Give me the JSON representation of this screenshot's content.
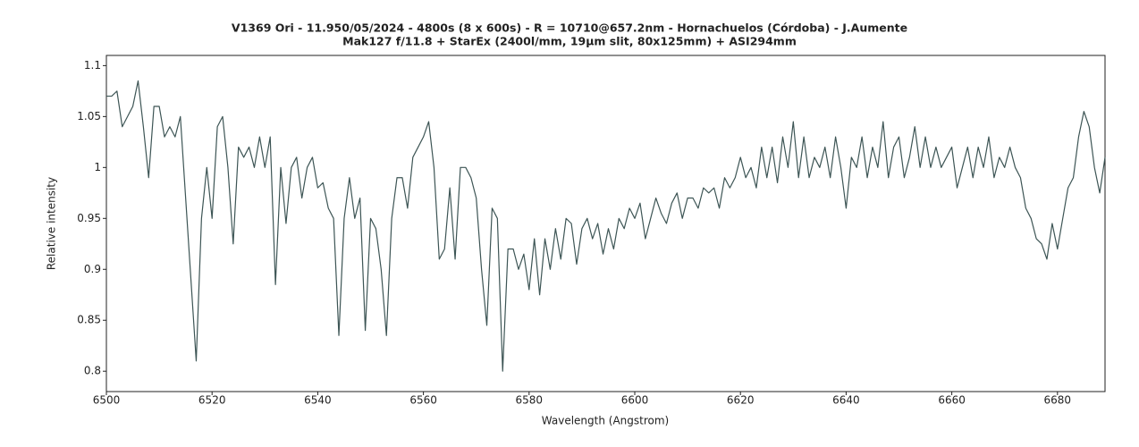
{
  "chart_data": {
    "type": "line",
    "title": "V1369 Ori - 11.950/05/2024 - 4800s (8 x 600s) - R = 10710@657.2nm - Hornachuelos (Córdoba) - J.Aumente",
    "subtitle": "Mak127 f/11.8 + StarEx (2400l/mm, 19µm slit, 80x125mm) + ASI294mm",
    "x_label": "Wavelength (Angstrom)",
    "y_label": "Relative intensity",
    "xlim": [
      6500,
      6689
    ],
    "ylim": [
      0.78,
      1.11
    ],
    "xticks": [
      6500,
      6520,
      6540,
      6560,
      6580,
      6600,
      6620,
      6640,
      6660,
      6680
    ],
    "yticks": [
      0.8,
      0.85,
      0.9,
      0.95,
      1,
      1.05,
      1.1
    ],
    "x": [
      6500,
      6501,
      6502,
      6503,
      6504,
      6505,
      6506,
      6507,
      6508,
      6509,
      6510,
      6511,
      6512,
      6513,
      6514,
      6515,
      6516,
      6517,
      6518,
      6519,
      6520,
      6521,
      6522,
      6523,
      6524,
      6525,
      6526,
      6527,
      6528,
      6529,
      6530,
      6531,
      6532,
      6533,
      6534,
      6535,
      6536,
      6537,
      6538,
      6539,
      6540,
      6541,
      6542,
      6543,
      6544,
      6545,
      6546,
      6547,
      6548,
      6549,
      6550,
      6551,
      6552,
      6553,
      6554,
      6555,
      6556,
      6557,
      6558,
      6559,
      6560,
      6561,
      6562,
      6563,
      6564,
      6565,
      6566,
      6567,
      6568,
      6569,
      6570,
      6571,
      6572,
      6573,
      6574,
      6575,
      6576,
      6577,
      6578,
      6579,
      6580,
      6581,
      6582,
      6583,
      6584,
      6585,
      6586,
      6587,
      6588,
      6589,
      6590,
      6591,
      6592,
      6593,
      6594,
      6595,
      6596,
      6597,
      6598,
      6599,
      6600,
      6601,
      6602,
      6603,
      6604,
      6605,
      6606,
      6607,
      6608,
      6609,
      6610,
      6611,
      6612,
      6613,
      6614,
      6615,
      6616,
      6617,
      6618,
      6619,
      6620,
      6621,
      6622,
      6623,
      6624,
      6625,
      6626,
      6627,
      6628,
      6629,
      6630,
      6631,
      6632,
      6633,
      6634,
      6635,
      6636,
      6637,
      6638,
      6639,
      6640,
      6641,
      6642,
      6643,
      6644,
      6645,
      6646,
      6647,
      6648,
      6649,
      6650,
      6651,
      6652,
      6653,
      6654,
      6655,
      6656,
      6657,
      6658,
      6659,
      6660,
      6661,
      6662,
      6663,
      6664,
      6665,
      6666,
      6667,
      6668,
      6669,
      6670,
      6671,
      6672,
      6673,
      6674,
      6675,
      6676,
      6677,
      6678,
      6679,
      6680,
      6681,
      6682,
      6683,
      6684,
      6685,
      6686,
      6687,
      6688,
      6689
    ],
    "series": [
      {
        "color": "#3d5555",
        "values": [
          1.07,
          1.07,
          1.075,
          1.04,
          1.05,
          1.06,
          1.085,
          1.04,
          0.99,
          1.06,
          1.06,
          1.03,
          1.04,
          1.03,
          1.05,
          0.97,
          0.89,
          0.81,
          0.95,
          1.0,
          0.95,
          1.04,
          1.05,
          1.0,
          0.925,
          1.02,
          1.01,
          1.02,
          1.0,
          1.03,
          1.0,
          1.03,
          0.885,
          1.0,
          0.945,
          1.0,
          1.01,
          0.97,
          1.0,
          1.01,
          0.98,
          0.985,
          0.96,
          0.95,
          0.835,
          0.95,
          0.99,
          0.95,
          0.97,
          0.84,
          0.95,
          0.94,
          0.9,
          0.835,
          0.95,
          0.99,
          0.99,
          0.96,
          1.01,
          1.02,
          1.03,
          1.045,
          1.0,
          0.91,
          0.92,
          0.98,
          0.91,
          1.0,
          1.0,
          0.99,
          0.97,
          0.9,
          0.845,
          0.96,
          0.95,
          0.8,
          0.92,
          0.92,
          0.9,
          0.915,
          0.88,
          0.93,
          0.875,
          0.93,
          0.9,
          0.94,
          0.91,
          0.95,
          0.945,
          0.905,
          0.94,
          0.95,
          0.93,
          0.945,
          0.915,
          0.94,
          0.92,
          0.95,
          0.94,
          0.96,
          0.95,
          0.965,
          0.93,
          0.95,
          0.97,
          0.955,
          0.945,
          0.965,
          0.975,
          0.95,
          0.97,
          0.97,
          0.96,
          0.98,
          0.975,
          0.98,
          0.96,
          0.99,
          0.98,
          0.99,
          1.01,
          0.99,
          1.0,
          0.98,
          1.02,
          0.99,
          1.02,
          0.985,
          1.03,
          1.0,
          1.045,
          0.99,
          1.03,
          0.99,
          1.01,
          1.0,
          1.02,
          0.99,
          1.03,
          1.0,
          0.96,
          1.01,
          1.0,
          1.03,
          0.99,
          1.02,
          1.0,
          1.045,
          0.99,
          1.02,
          1.03,
          0.99,
          1.01,
          1.04,
          1.0,
          1.03,
          1.0,
          1.02,
          1.0,
          1.01,
          1.02,
          0.98,
          1.0,
          1.02,
          0.99,
          1.02,
          1.0,
          1.03,
          0.99,
          1.01,
          1.0,
          1.02,
          1.0,
          0.99,
          0.96,
          0.95,
          0.93,
          0.925,
          0.91,
          0.945,
          0.92,
          0.95,
          0.98,
          0.99,
          1.03,
          1.055,
          1.04,
          1.0,
          0.975,
          1.01
        ]
      }
    ]
  }
}
